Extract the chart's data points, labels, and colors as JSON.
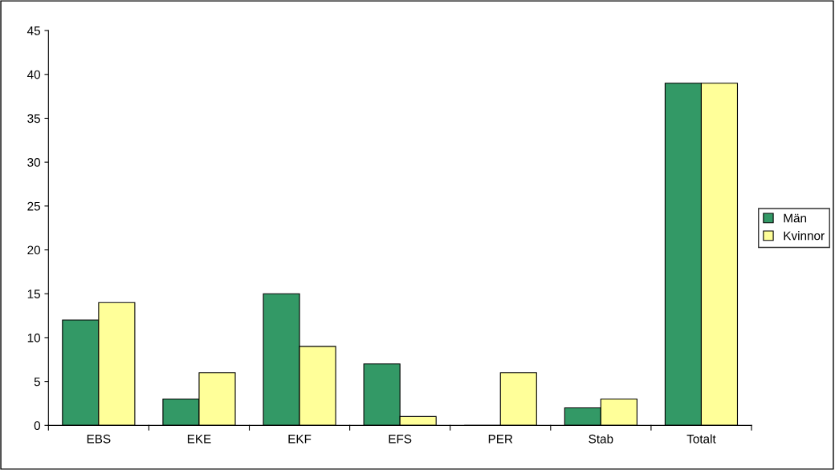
{
  "chart_data": {
    "type": "bar",
    "categories": [
      "EBS",
      "EKE",
      "EKF",
      "EFS",
      "PER",
      "Stab",
      "Totalt"
    ],
    "series": [
      {
        "name": "Män",
        "color": "#339966",
        "values": [
          12,
          3,
          15,
          7,
          0,
          2,
          39
        ]
      },
      {
        "name": "Kvinnor",
        "color": "#ffff99",
        "values": [
          14,
          6,
          9,
          1,
          6,
          3,
          39
        ]
      }
    ],
    "ylim": [
      0,
      45
    ],
    "yticks": [
      0,
      5,
      10,
      15,
      20,
      25,
      30,
      35,
      40,
      45
    ],
    "grid": false,
    "legend": "right"
  }
}
